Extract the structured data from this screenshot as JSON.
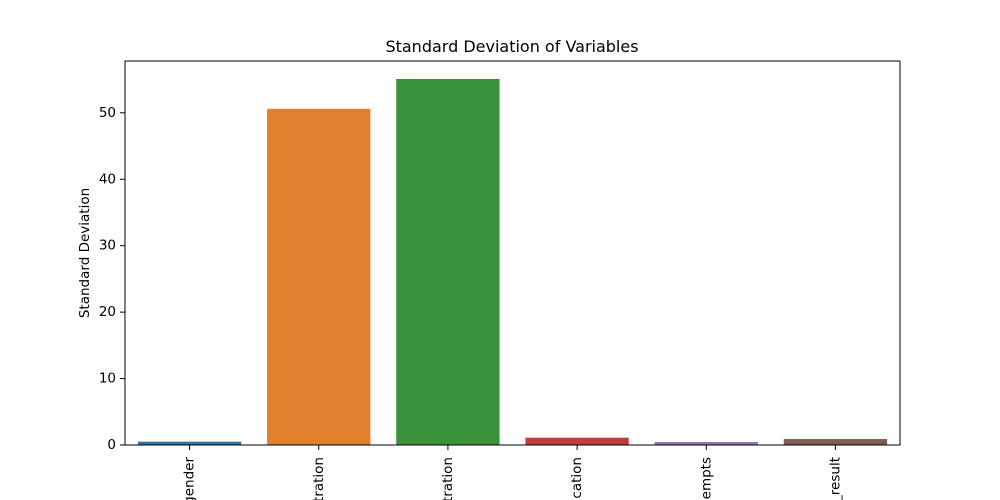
{
  "chart_data": {
    "type": "bar",
    "title": "Standard Deviation of Variables",
    "xlabel": "",
    "ylabel": "Standard Deviation",
    "categories": [
      "gender",
      "tration",
      "tration",
      "cation",
      "empts",
      "_result"
    ],
    "values": [
      0.5,
      50.6,
      55.1,
      1.1,
      0.45,
      0.9
    ],
    "colors": [
      "#3274a1",
      "#e1812c",
      "#3a923a",
      "#c03d3e",
      "#9372b2",
      "#845b53"
    ],
    "ylim": [
      0,
      57.8
    ],
    "yticks": [
      0,
      10,
      20,
      30,
      40,
      50
    ],
    "grid": false,
    "legend": "none"
  }
}
